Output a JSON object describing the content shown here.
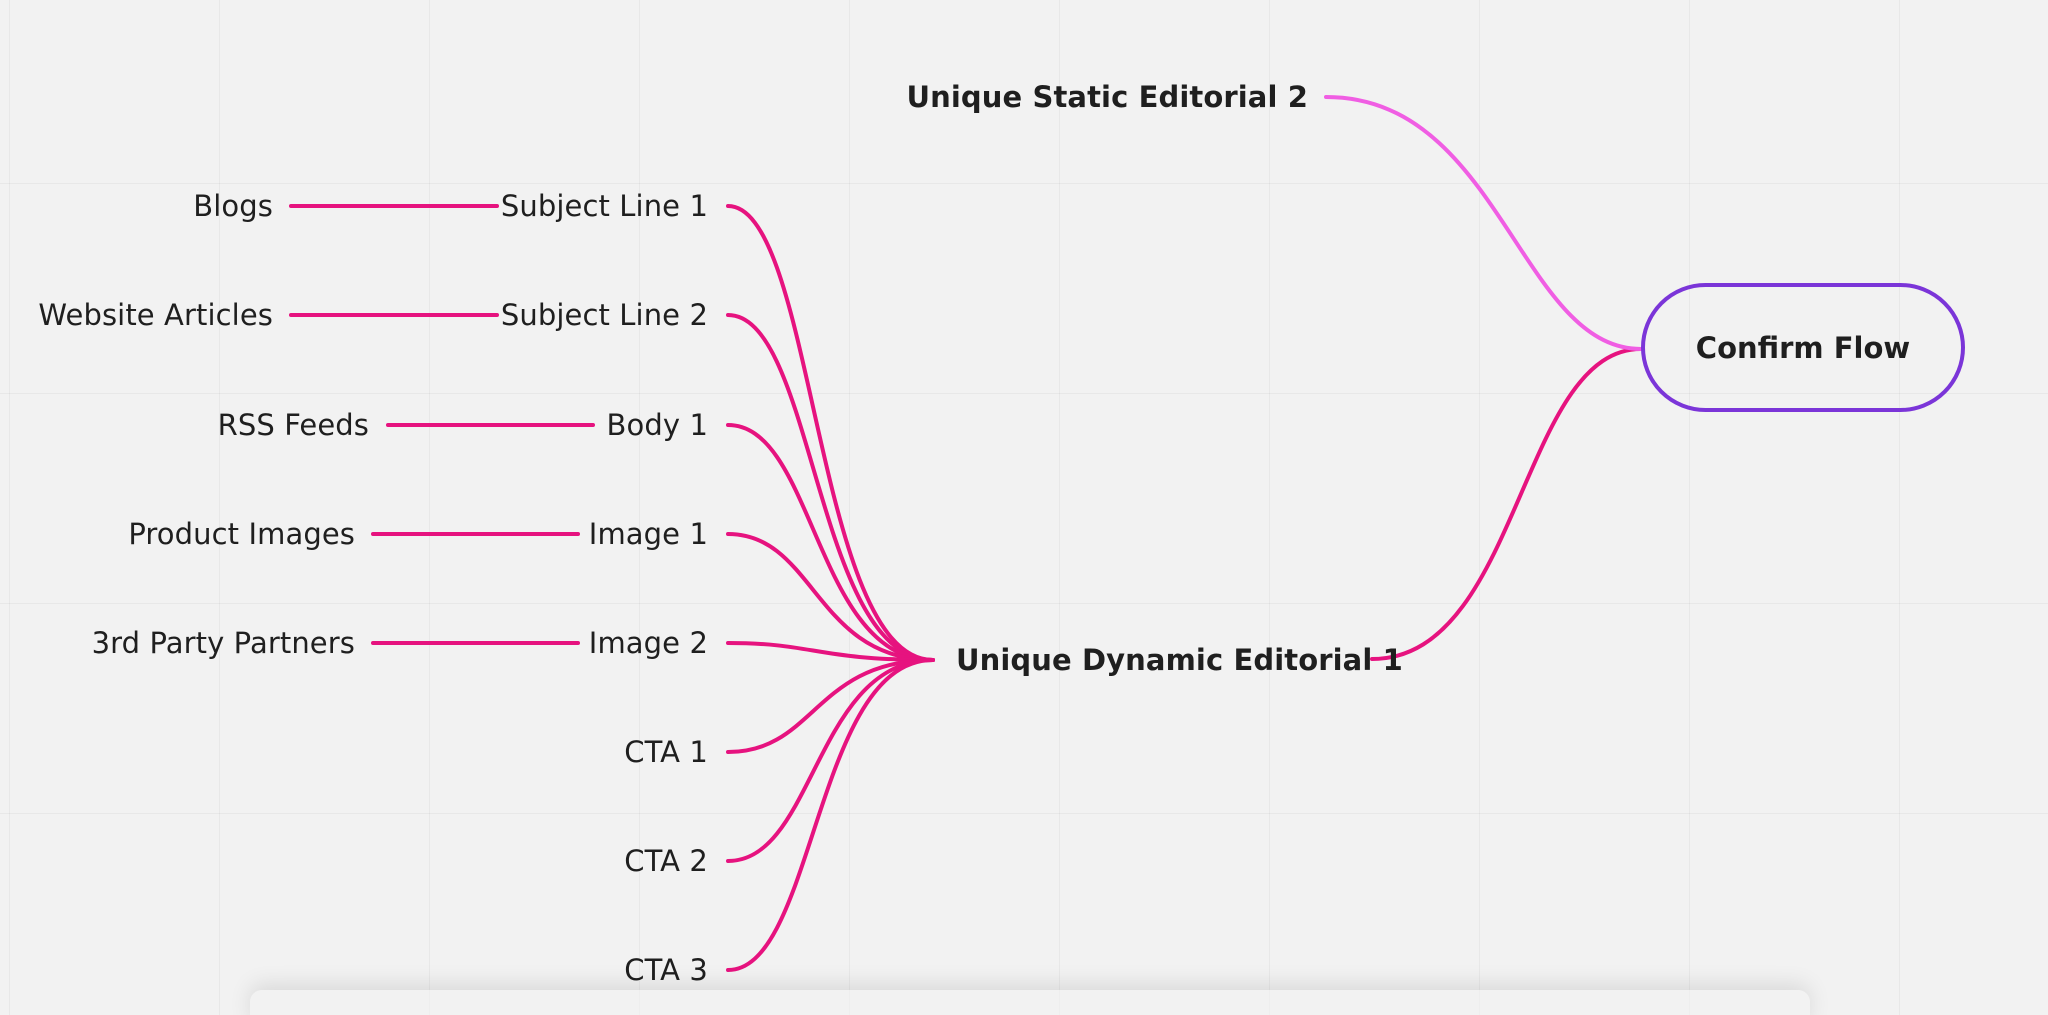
{
  "colors": {
    "edge": "#e6137f",
    "edge_light": "#f05ee3",
    "pill_border": "#7b35d8",
    "text": "#1f1f1f",
    "background": "#f2f2f2"
  },
  "nodes": {
    "blogs": "Blogs",
    "website_articles": "Website Articles",
    "rss_feeds": "RSS Feeds",
    "product_images": "Product Images",
    "third_party_partners": "3rd Party Partners",
    "subject_line_1": "Subject Line 1",
    "subject_line_2": "Subject Line 2",
    "body_1": "Body 1",
    "image_1": "Image 1",
    "image_2": "Image 2",
    "cta_1": "CTA 1",
    "cta_2": "CTA 2",
    "cta_3": "CTA 3",
    "unique_dynamic_editorial_1": "Unique Dynamic Editorial 1",
    "unique_static_editorial_2": "Unique Static Editorial 2",
    "confirm_flow": "Confirm Flow"
  }
}
